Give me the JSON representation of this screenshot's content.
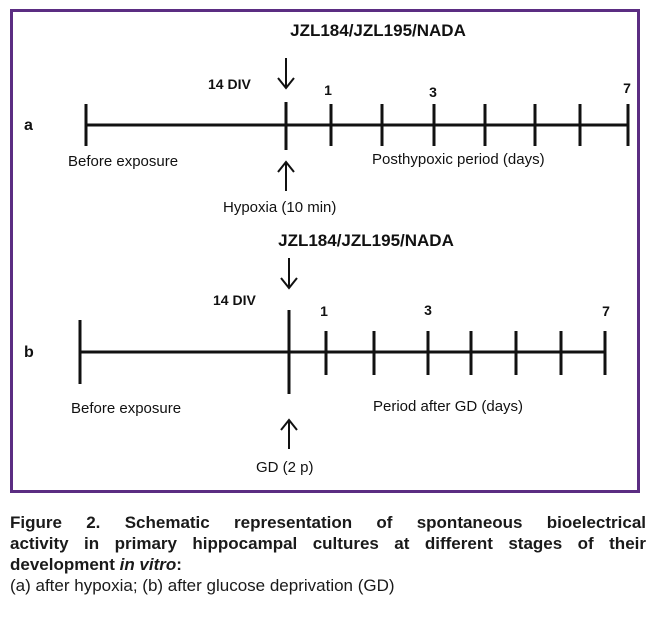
{
  "panel_a": {
    "compound_label": "JZL184/JZL195/NADA",
    "div_label": "14 DIV",
    "panel_letter": "a",
    "day_labels": [
      "1",
      "3",
      "7"
    ],
    "before_label": "Before exposure",
    "after_label": "Posthypoxic period (days)",
    "insult_label": "Hypoxia (10 min)"
  },
  "panel_b": {
    "compound_label": "JZL184/JZL195/NADA",
    "div_label": "14 DIV",
    "panel_letter": "b",
    "day_labels": [
      "1",
      "3",
      "7"
    ],
    "before_label": "Before exposure",
    "after_label": "Period after GD (days)",
    "insult_label": "GD (2 р)"
  },
  "caption": {
    "line1": "Figure 2. Schematic representation of spontaneous bioelectrical",
    "line2": "activity in primary hippocampal cultures at different stages of their",
    "line3_prefix": "development ",
    "line3_italic": "in vitro",
    "line3_suffix": ":",
    "line4": "(a) after hypoxia; (b) after glucose deprivation (GD)"
  },
  "colors": {
    "border": "#5b2d82",
    "line": "#111111"
  }
}
